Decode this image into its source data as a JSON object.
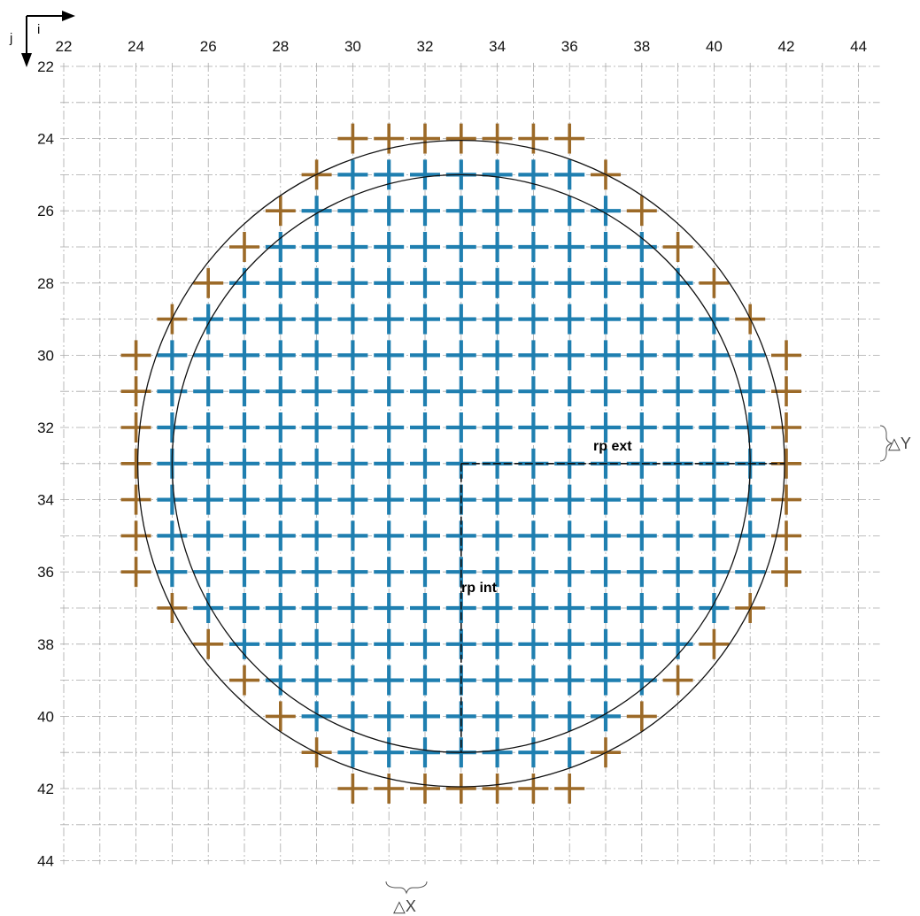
{
  "axes": {
    "i_label": "i",
    "j_label": "j",
    "x_ticks": [
      22,
      24,
      26,
      28,
      30,
      32,
      34,
      36,
      38,
      40,
      42,
      44
    ],
    "y_ticks": [
      22,
      24,
      26,
      28,
      30,
      32,
      34,
      36,
      38,
      40,
      42,
      44
    ],
    "range": [
      22,
      44
    ],
    "grid": true
  },
  "center": [
    33,
    33
  ],
  "circles": {
    "external_radius": 9,
    "internal_radius": 8
  },
  "labels": {
    "rp_ext": "rp ext",
    "rp_int": "rp int",
    "delta_x": "△X",
    "delta_y": "△Y"
  },
  "colors": {
    "interior_cross": "#1f7fb0",
    "boundary_cross": "#9c6a28",
    "grid": "#a9a9a9"
  },
  "points": {
    "interior_rows": [
      {
        "j": 25,
        "i": [
          30,
          36
        ]
      },
      {
        "j": 26,
        "i": [
          29,
          37
        ]
      },
      {
        "j": 27,
        "i": [
          28,
          38
        ]
      },
      {
        "j": 28,
        "i": [
          27,
          39
        ]
      },
      {
        "j": 29,
        "i": [
          26,
          40
        ]
      },
      {
        "j": 30,
        "i": [
          25,
          41
        ]
      },
      {
        "j": 31,
        "i": [
          25,
          41
        ]
      },
      {
        "j": 32,
        "i": [
          25,
          41
        ]
      },
      {
        "j": 33,
        "i": [
          25,
          41
        ]
      },
      {
        "j": 34,
        "i": [
          25,
          41
        ]
      },
      {
        "j": 35,
        "i": [
          25,
          41
        ]
      },
      {
        "j": 36,
        "i": [
          25,
          41
        ]
      },
      {
        "j": 37,
        "i": [
          26,
          40
        ]
      },
      {
        "j": 38,
        "i": [
          27,
          39
        ]
      },
      {
        "j": 39,
        "i": [
          28,
          38
        ]
      },
      {
        "j": 40,
        "i": [
          29,
          37
        ]
      },
      {
        "j": 41,
        "i": [
          30,
          36
        ]
      }
    ],
    "boundary": [
      [
        30,
        24
      ],
      [
        31,
        24
      ],
      [
        32,
        24
      ],
      [
        33,
        24
      ],
      [
        34,
        24
      ],
      [
        35,
        24
      ],
      [
        36,
        24
      ],
      [
        29,
        25
      ],
      [
        37,
        25
      ],
      [
        28,
        26
      ],
      [
        38,
        26
      ],
      [
        27,
        27
      ],
      [
        39,
        27
      ],
      [
        26,
        28
      ],
      [
        40,
        28
      ],
      [
        25,
        29
      ],
      [
        41,
        29
      ],
      [
        24,
        30
      ],
      [
        42,
        30
      ],
      [
        24,
        31
      ],
      [
        42,
        31
      ],
      [
        24,
        32
      ],
      [
        42,
        32
      ],
      [
        24,
        33
      ],
      [
        42,
        33
      ],
      [
        24,
        34
      ],
      [
        42,
        34
      ],
      [
        24,
        35
      ],
      [
        42,
        35
      ],
      [
        24,
        36
      ],
      [
        42,
        36
      ],
      [
        25,
        37
      ],
      [
        41,
        37
      ],
      [
        26,
        38
      ],
      [
        40,
        38
      ],
      [
        27,
        39
      ],
      [
        39,
        39
      ],
      [
        28,
        40
      ],
      [
        38,
        40
      ],
      [
        29,
        41
      ],
      [
        37,
        41
      ],
      [
        30,
        42
      ],
      [
        31,
        42
      ],
      [
        32,
        42
      ],
      [
        33,
        42
      ],
      [
        34,
        42
      ],
      [
        35,
        42
      ],
      [
        36,
        42
      ]
    ]
  }
}
